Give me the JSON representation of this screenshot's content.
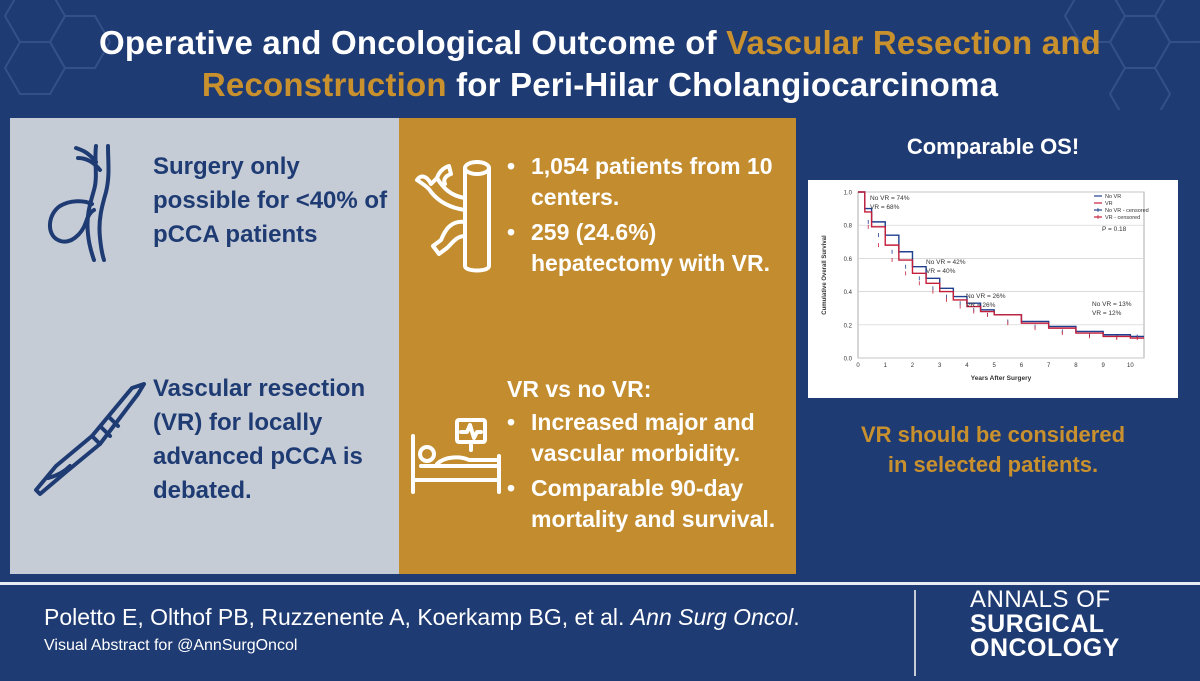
{
  "header": {
    "title_part1": "Operative and Oncological Outcome of ",
    "title_accent1": "Vascular Resection and",
    "title_accent2": "Reconstruction",
    "title_part2": " for Peri-Hilar Cholangiocarcinoma"
  },
  "colors": {
    "navy": "#1f3b73",
    "gold": "#c38d2f",
    "gray": "#c5ccd6",
    "gold_text": "#c9912e"
  },
  "panel_left": {
    "icon_top": "bile-duct-icon",
    "text_top": "Surgery only possible for <40% of pCCA patients",
    "icon_bottom": "scalpel-icon",
    "text_bottom": "Vascular resection (VR) for locally advanced pCCA is debated."
  },
  "panel_middle": {
    "icon_top": "vessel-icon",
    "bullets_top": [
      "1,054 patients from 10 centers.",
      "259 (24.6%) hepatectomy with VR."
    ],
    "icon_bottom": "hospital-bed-icon",
    "heading": "VR vs no VR:",
    "bullets_bottom": [
      "Increased major and vascular morbidity.",
      "Comparable 90-day mortality and survival."
    ]
  },
  "panel_right": {
    "title": "Comparable OS!",
    "conclusion_line1": "VR should be considered",
    "conclusion_line2": "in selected patients."
  },
  "chart_data": {
    "type": "line",
    "xlabel": "Years After Surgery",
    "ylabel": "Cumulative Overall Survival",
    "xlim": [
      0,
      10.5
    ],
    "ylim": [
      0,
      1.0
    ],
    "x_ticks": [
      "0",
      "1",
      "2",
      "3",
      "4",
      "5",
      "6",
      "7",
      "8",
      "9",
      "10"
    ],
    "y_ticks": [
      "0.0",
      "0.2",
      "0.4",
      "0.6",
      "0.8",
      "1.0"
    ],
    "legend": [
      "No VR",
      "VR",
      "No VR - censored",
      "VR - censored"
    ],
    "legend_position": "top-right",
    "p_value": "P = 0.18",
    "annotations": [
      {
        "line1": "No VR = 74%",
        "line2": "VR = 68%"
      },
      {
        "line1": "No VR = 42%",
        "line2": "VR = 40%"
      },
      {
        "line1": "No VR = 26%",
        "line2": "VR = 26%"
      },
      {
        "line1": "No VR = 13%",
        "line2": "VR = 12%"
      }
    ],
    "series": [
      {
        "name": "No VR",
        "color": "#1f3f8f",
        "x": [
          0,
          0.25,
          0.5,
          1,
          1.5,
          2,
          2.5,
          3,
          3.5,
          4,
          4.5,
          5,
          6,
          7,
          8,
          9,
          10,
          10.5
        ],
        "y": [
          1.0,
          0.9,
          0.82,
          0.74,
          0.64,
          0.55,
          0.48,
          0.42,
          0.37,
          0.33,
          0.29,
          0.26,
          0.22,
          0.19,
          0.16,
          0.14,
          0.13,
          0.13
        ]
      },
      {
        "name": "VR",
        "color": "#c41e3a",
        "x": [
          0,
          0.25,
          0.5,
          1,
          1.5,
          2,
          2.5,
          3,
          3.5,
          4,
          4.5,
          5,
          6,
          7,
          8,
          9,
          10,
          10.5
        ],
        "y": [
          1.0,
          0.88,
          0.79,
          0.68,
          0.59,
          0.51,
          0.45,
          0.4,
          0.35,
          0.31,
          0.28,
          0.26,
          0.21,
          0.18,
          0.15,
          0.13,
          0.12,
          0.12
        ]
      }
    ]
  },
  "footer": {
    "citation_authors": "Poletto E, Olthof PB, Ruzzenente A, Koerkamp BG, et al. ",
    "citation_journal": "Ann Surg Oncol",
    "citation_end": ".",
    "visual_abstract": "Visual Abstract for @AnnSurgOncol",
    "journal_line1": "ANNALS OF",
    "journal_line2": "SURGICAL",
    "journal_line3": "ONCOLOGY"
  }
}
